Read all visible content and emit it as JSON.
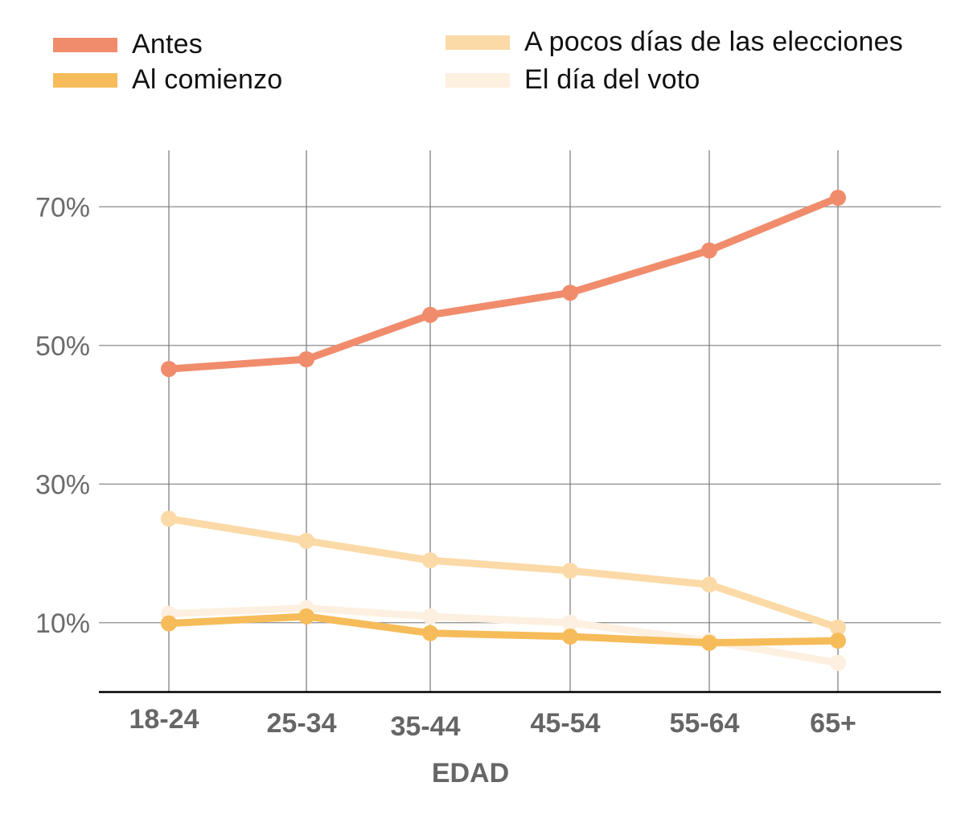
{
  "chart_data": {
    "type": "line",
    "title": "",
    "xlabel": "EDAD",
    "ylabel": "",
    "categories": [
      "18-24",
      "25-34",
      "35-44",
      "45-54",
      "55-64",
      "65+"
    ],
    "yticks": [
      10,
      30,
      50,
      70
    ],
    "ytick_labels": [
      "10%",
      "30%",
      "50%",
      "70%"
    ],
    "ylim": [
      0,
      78
    ],
    "grid": true,
    "legend_position": "top",
    "series": [
      {
        "name": "Antes",
        "color": "#f08c6c",
        "values": [
          46.6,
          48.0,
          54.4,
          57.6,
          63.7,
          71.3
        ]
      },
      {
        "name": "Al comienzo",
        "color": "#f6bc5a",
        "values": [
          9.9,
          10.9,
          8.5,
          8.0,
          7.1,
          7.4
        ]
      },
      {
        "name": "A pocos días de las elecciones",
        "color": "#fbdaa7",
        "values": [
          25.0,
          21.8,
          19.0,
          17.5,
          15.5,
          9.3
        ]
      },
      {
        "name": "El día del voto",
        "color": "#fdf0e0",
        "values": [
          11.3,
          12.1,
          10.9,
          10.0,
          7.4,
          4.2
        ]
      }
    ]
  }
}
